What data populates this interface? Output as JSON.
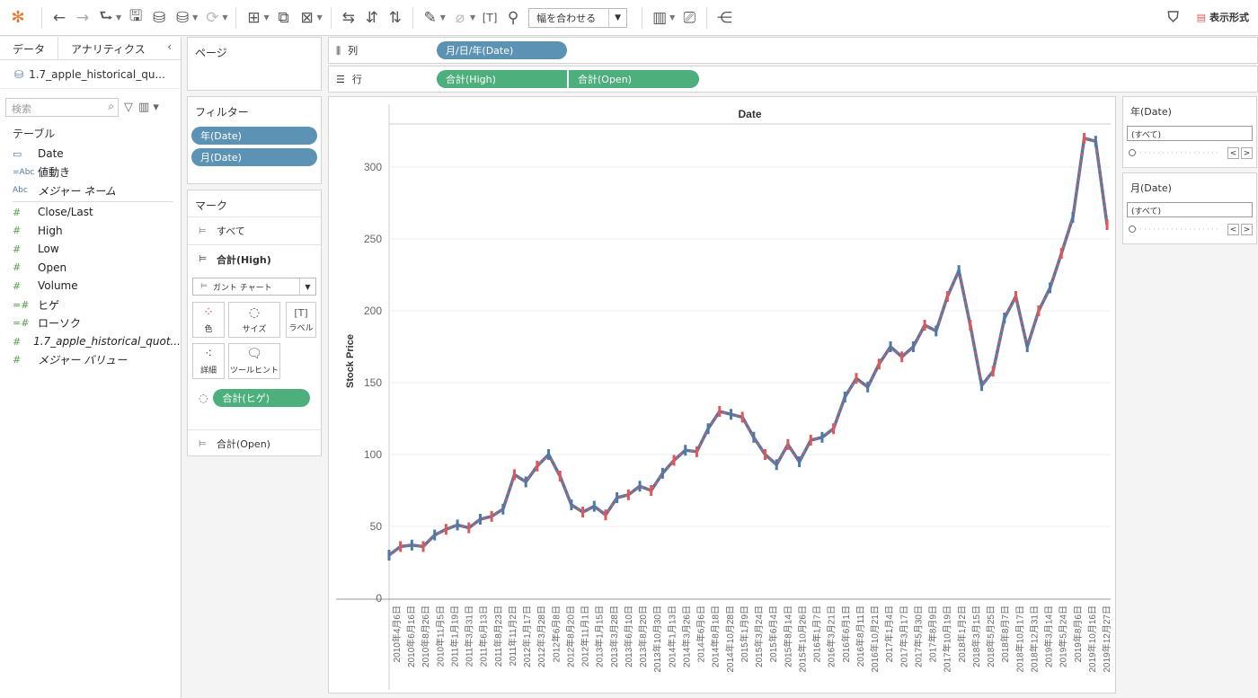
{
  "toolbar": {
    "fit_label": "幅を合わせる",
    "show_me_label": "表示形式"
  },
  "data_pane": {
    "tab_data": "データ",
    "tab_analytics": "アナリティクス",
    "datasource": "1.7_apple_historical_qu...",
    "search_placeholder": "検索",
    "table_header": "テーブル",
    "dimensions": [
      {
        "type": "Date-icon",
        "label": "Date"
      },
      {
        "type": "Abc",
        "label": "値動き"
      },
      {
        "type": "Abc",
        "label": "メジャー ネーム"
      }
    ],
    "measures": [
      {
        "label": "Close/Last"
      },
      {
        "label": "High"
      },
      {
        "label": "Low"
      },
      {
        "label": "Open"
      },
      {
        "label": "Volume"
      },
      {
        "label": "ヒゲ"
      },
      {
        "label": "ローソク"
      },
      {
        "label": "1.7_apple_historical_quot..."
      },
      {
        "label": "メジャー バリュー"
      }
    ]
  },
  "pages": {
    "title": "ページ"
  },
  "filters": {
    "title": "フィルター",
    "items": [
      "年(Date)",
      "月(Date)"
    ]
  },
  "marks": {
    "title": "マーク",
    "all_label": "すべて",
    "high_label": "合計(High)",
    "mark_type": "ガント チャート",
    "buttons": {
      "color": "色",
      "size": "サイズ",
      "label": "ラベル",
      "detail": "詳細",
      "tooltip": "ツールヒント"
    },
    "size_pill": "合計(ヒゲ)",
    "open_label": "合計(Open)"
  },
  "columns_shelf": {
    "label": "列",
    "pill": "月/日/年(Date)"
  },
  "rows_shelf": {
    "label": "行",
    "pills": [
      "合計(High)",
      "合計(Open)"
    ]
  },
  "quick_filters": [
    {
      "title": "年(Date)",
      "value": "(すべて)"
    },
    {
      "title": "月(Date)",
      "value": "(すべて)"
    }
  ],
  "chart_data": {
    "type": "line",
    "title": "Date",
    "xlabel": "",
    "ylabel": "Stock Price",
    "ylim": [
      0,
      330
    ],
    "yticks": [
      0,
      50,
      100,
      150,
      200,
      250,
      300
    ],
    "grid": true,
    "xtick_labels": [
      "2010年4月6日",
      "2010年6月16日",
      "2010年8月26日",
      "2010年11月5日",
      "2011年1月19日",
      "2011年3月31日",
      "2011年6月13日",
      "2011年8月23日",
      "2011年11月2日",
      "2012年1月17日",
      "2012年3月28日",
      "2012年6月8日",
      "2012年8月20日",
      "2012年11月1日",
      "2013年1月15日",
      "2013年3月28日",
      "2013年6月10日",
      "2013年8月20日",
      "2013年10月30日",
      "2014年1月13日",
      "2014年3月26日",
      "2014年6月6日",
      "2014年8月18日",
      "2014年10月28日",
      "2015年1月9日",
      "2015年3月24日",
      "2015年6月4日",
      "2015年8月14日",
      "2015年10月26日",
      "2016年1月7日",
      "2016年3月21日",
      "2016年6月1日",
      "2016年8月11日",
      "2016年10月21日",
      "2017年1月4日",
      "2017年3月17日",
      "2017年5月30日",
      "2017年8月9日",
      "2017年10月19日",
      "2018年1月2日",
      "2018年3月15日",
      "2018年5月25日",
      "2018年8月7日",
      "2018年10月17日",
      "2018年12月31日",
      "2019年3月14日",
      "2019年5月24日",
      "2019年8月6日",
      "2019年10月16日",
      "2019年12月27日"
    ],
    "series": [
      {
        "values": [
          30,
          36,
          37,
          36,
          44,
          48,
          51,
          49,
          55,
          57,
          62,
          86,
          81,
          92,
          100,
          85,
          65,
          60,
          64,
          58,
          70,
          72,
          78,
          75,
          87,
          96,
          103,
          102,
          118,
          130,
          128,
          126,
          112,
          100,
          93,
          107,
          95,
          110,
          112,
          118,
          140,
          153,
          147,
          163,
          175,
          168,
          175,
          190,
          186,
          210,
          228,
          190,
          148,
          158,
          195,
          210,
          175,
          200,
          216,
          240,
          265,
          320,
          318,
          260
        ]
      }
    ]
  }
}
